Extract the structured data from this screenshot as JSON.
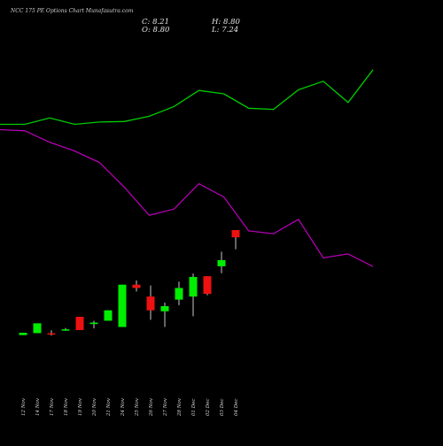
{
  "header": {
    "title": "NCC 175 PE Options  Chart Munafasutra.com",
    "close": "C: 8.21",
    "high": "H: 8.80",
    "open": "O: 8.80",
    "low": "L: 7.24"
  },
  "chart_data": {
    "type": "candlestick",
    "title": "NCC 175 PE Options  Chart Munafasutra.com",
    "categories": [
      "12 Nov",
      "14 Nov",
      "17 Nov",
      "18 Nov",
      "19 Nov",
      "20 Nov",
      "21 Nov",
      "24 Nov",
      "25 Nov",
      "26 Nov",
      "27 Nov",
      "28 Nov",
      "01 Dec",
      "02 Dec",
      "03 Dec",
      "04 Dec"
    ],
    "ohlc": [
      {
        "open": 0.24,
        "high": 0.43,
        "low": 0.24,
        "close": 0.43
      },
      {
        "open": 0.4,
        "high": 1.2,
        "low": 0.4,
        "close": 1.2
      },
      {
        "open": 0.39,
        "high": 0.63,
        "low": 0.2,
        "close": 0.31
      },
      {
        "open": 0.67,
        "high": 0.82,
        "low": 0.59,
        "close": 0.71
      },
      {
        "open": 1.73,
        "high": 1.73,
        "low": 0.65,
        "close": 0.65
      },
      {
        "open": 1.14,
        "high": 1.41,
        "low": 0.78,
        "close": 1.26
      },
      {
        "open": 1.41,
        "high": 2.26,
        "low": 1.41,
        "close": 2.26
      },
      {
        "open": 0.9,
        "high": 4.35,
        "low": 0.9,
        "close": 4.35
      },
      {
        "open": 4.35,
        "high": 4.7,
        "low": 3.8,
        "close": 4.08
      },
      {
        "open": 3.38,
        "high": 4.28,
        "low": 1.49,
        "close": 2.26
      },
      {
        "open": 2.18,
        "high": 2.89,
        "low": 0.9,
        "close": 2.6
      },
      {
        "open": 3.13,
        "high": 4.6,
        "low": 2.68,
        "close": 4.08
      },
      {
        "open": 3.38,
        "high": 5.26,
        "low": 1.78,
        "close": 4.98
      },
      {
        "open": 5.04,
        "high": 5.04,
        "low": 3.49,
        "close": 3.6
      },
      {
        "open": 5.85,
        "high": 7.04,
        "low": 5.28,
        "close": 6.35
      },
      {
        "open": 8.8,
        "high": 8.8,
        "low": 7.24,
        "close": 8.21
      }
    ],
    "series": [
      {
        "color": "#00cc00",
        "values": [
          0.0,
          0.0,
          0.11,
          0.0,
          0.04,
          0.05,
          0.14,
          0.31,
          0.59,
          0.53,
          0.28,
          0.26,
          0.6,
          0.75,
          0.38,
          0.95
        ]
      },
      {
        "color": "#b000b0",
        "values": [
          0.0,
          -0.02,
          -0.22,
          -0.37,
          -0.57,
          -1.0,
          -1.49,
          -1.38,
          -0.94,
          -1.17,
          -1.76,
          -1.81,
          -1.56,
          -2.23,
          -2.16,
          -2.38
        ]
      }
    ],
    "colors": {
      "up": "#00ee00",
      "down": "#ee1111",
      "wick": "#c8c8c8",
      "background": "#000000"
    }
  }
}
